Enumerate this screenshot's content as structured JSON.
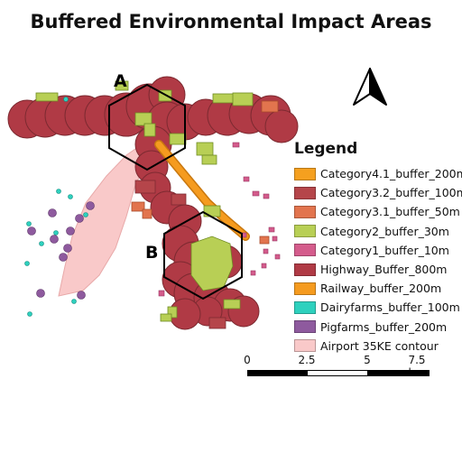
{
  "title": "Buffered Environmental Impact Areas",
  "labels": {
    "a": "A",
    "b": "B"
  },
  "legend": {
    "title": "Legend",
    "items": [
      {
        "label": "Category4.1_buffer_200m",
        "color": "#f5a01f"
      },
      {
        "label": "Category3.2_buffer_100m",
        "color": "#b5454a"
      },
      {
        "label": "Category3.1_buffer_50m",
        "color": "#e2744e"
      },
      {
        "label": "Category2_buffer_30m",
        "color": "#b8cf55"
      },
      {
        "label": "Category1_buffer_10m",
        "color": "#d45c8c"
      },
      {
        "label": "Highway_Buffer_800m",
        "color": "#b03a45"
      },
      {
        "label": "Railway_buffer_200m",
        "color": "#f59b1f"
      },
      {
        "label": "Dairyfarms_buffer_100m",
        "color": "#2ed1be"
      },
      {
        "label": "Pigfarms_buffer_200m",
        "color": "#8e5a9e"
      },
      {
        "label": "Airport 35KE contour",
        "color": "#f9c9c9"
      }
    ]
  },
  "scalebar": {
    "ticks": [
      "0",
      "2.5",
      "5",
      "7.5 km"
    ]
  },
  "north_arrow": {
    "icon": "north-arrow-icon"
  }
}
